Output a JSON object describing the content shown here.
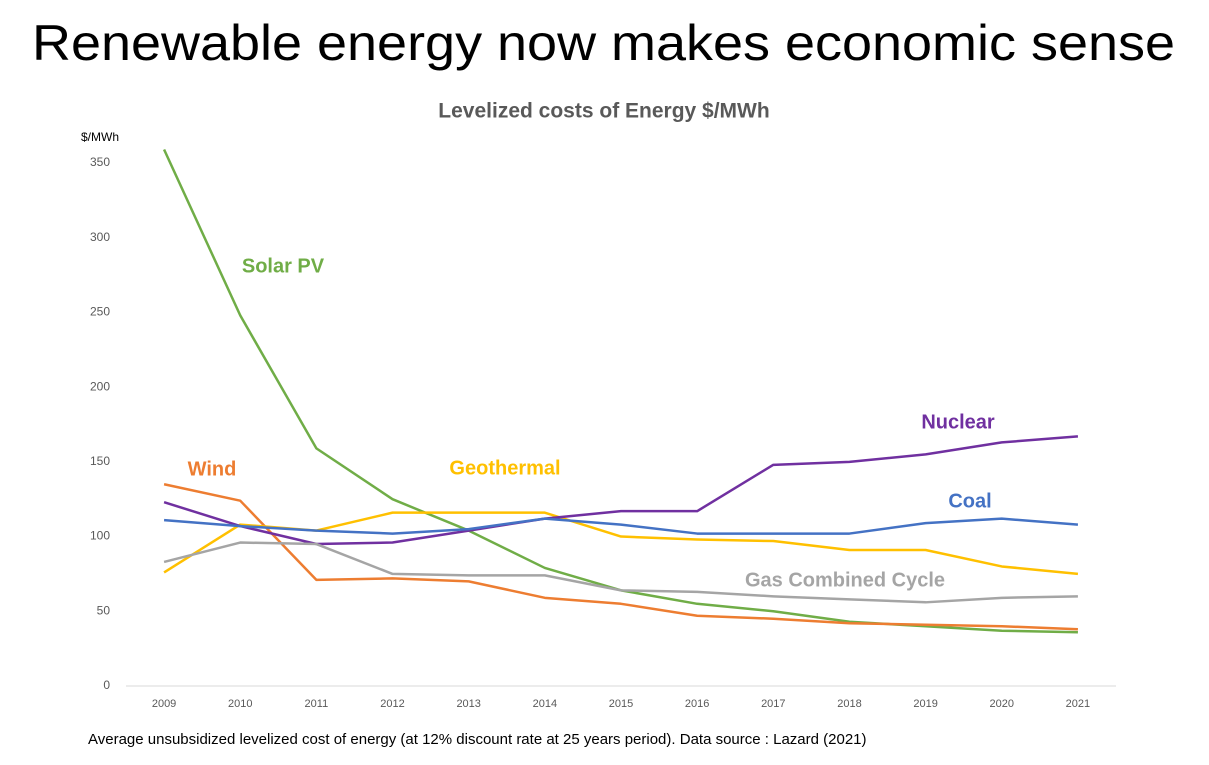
{
  "heading": "Renewable energy now makes economic sense",
  "chart_data": {
    "type": "line",
    "title": "Levelized costs of Energy $/MWh",
    "y_label": "$/MWh",
    "categories": [
      "2009",
      "2010",
      "2011",
      "2012",
      "2013",
      "2014",
      "2015",
      "2016",
      "2017",
      "2018",
      "2019",
      "2020",
      "2021"
    ],
    "series": [
      {
        "name": "Solar PV",
        "color": "#70ad47",
        "values": [
          359,
          248,
          159,
          125,
          104,
          79,
          64,
          55,
          50,
          43,
          40,
          37,
          36
        ]
      },
      {
        "name": "Wind",
        "color": "#ed7d31",
        "values": [
          135,
          124,
          71,
          72,
          70,
          59,
          55,
          47,
          45,
          42,
          41,
          40,
          38
        ]
      },
      {
        "name": "Geothermal",
        "color": "#ffc000",
        "values": [
          76,
          108,
          104,
          116,
          116,
          116,
          100,
          98,
          97,
          91,
          91,
          80,
          75
        ]
      },
      {
        "name": "Nuclear",
        "color": "#7030a0",
        "values": [
          123,
          107,
          95,
          96,
          104,
          112,
          117,
          117,
          148,
          150,
          155,
          163,
          167
        ]
      },
      {
        "name": "Coal",
        "color": "#4472c4",
        "values": [
          111,
          107,
          104,
          102,
          105,
          112,
          108,
          102,
          102,
          102,
          109,
          112,
          108
        ]
      },
      {
        "name": "Gas Combined Cycle",
        "color": "#a5a5a5",
        "values": [
          83,
          96,
          95,
          75,
          74,
          74,
          64,
          63,
          60,
          58,
          56,
          59,
          60
        ]
      }
    ],
    "ylim": [
      0,
      360
    ],
    "yticks": [
      0,
      50,
      100,
      150,
      200,
      250,
      300,
      350
    ],
    "grid": false,
    "footnote": "Average unsubsidized levelized cost of energy (at 12% discount rate at 25 years period). Data source : Lazard (2021)"
  }
}
